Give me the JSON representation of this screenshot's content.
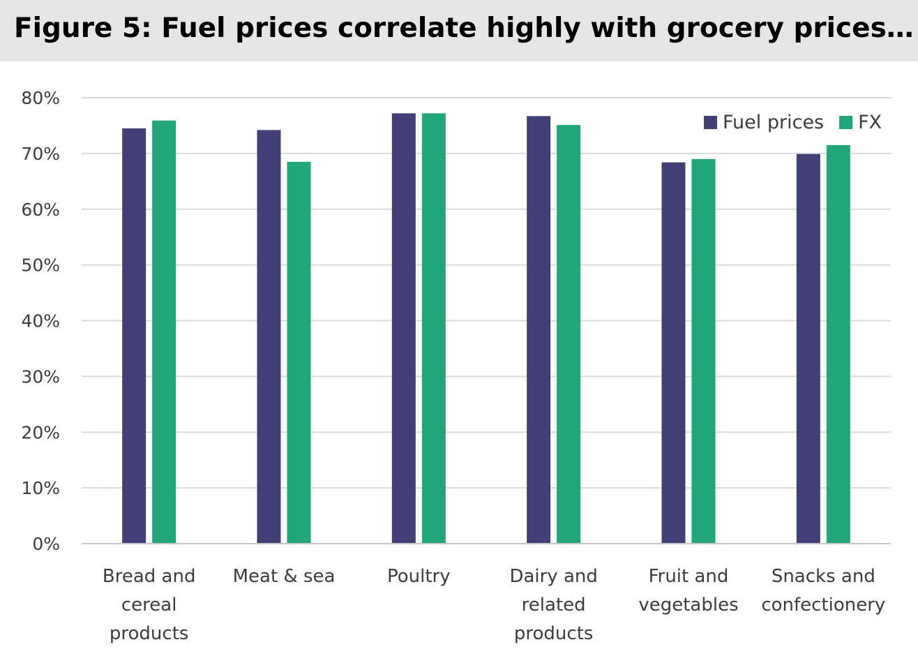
{
  "chart_data": {
    "type": "bar",
    "title": "Figure 5:  Fuel prices correlate highly with grocery prices…",
    "categories": [
      [
        "Bread and",
        "cereal",
        "products"
      ],
      [
        "Meat & sea"
      ],
      [
        "Poultry"
      ],
      [
        "Dairy and",
        "related",
        "products"
      ],
      [
        "Fruit and",
        "vegetables"
      ],
      [
        "Snacks and",
        "confectionery"
      ]
    ],
    "series": [
      {
        "name": "Fuel prices",
        "color": "#413f75",
        "values": [
          74.5,
          74.2,
          77.2,
          76.7,
          68.4,
          69.9
        ]
      },
      {
        "name": "FX",
        "color": "#21a57a",
        "values": [
          75.9,
          68.5,
          77.2,
          75.1,
          69.0,
          71.5
        ]
      }
    ],
    "ylim": [
      0,
      80
    ],
    "yticks": [
      0,
      10,
      20,
      30,
      40,
      50,
      60,
      70,
      80
    ],
    "ytick_suffix": "%",
    "xlabel": "",
    "ylabel": "",
    "grid": true,
    "legend_position": "top-right",
    "colors": {
      "grid": "#d9dce1",
      "axis": "#c8c8c8",
      "title_background": "#e6e6e6"
    }
  }
}
